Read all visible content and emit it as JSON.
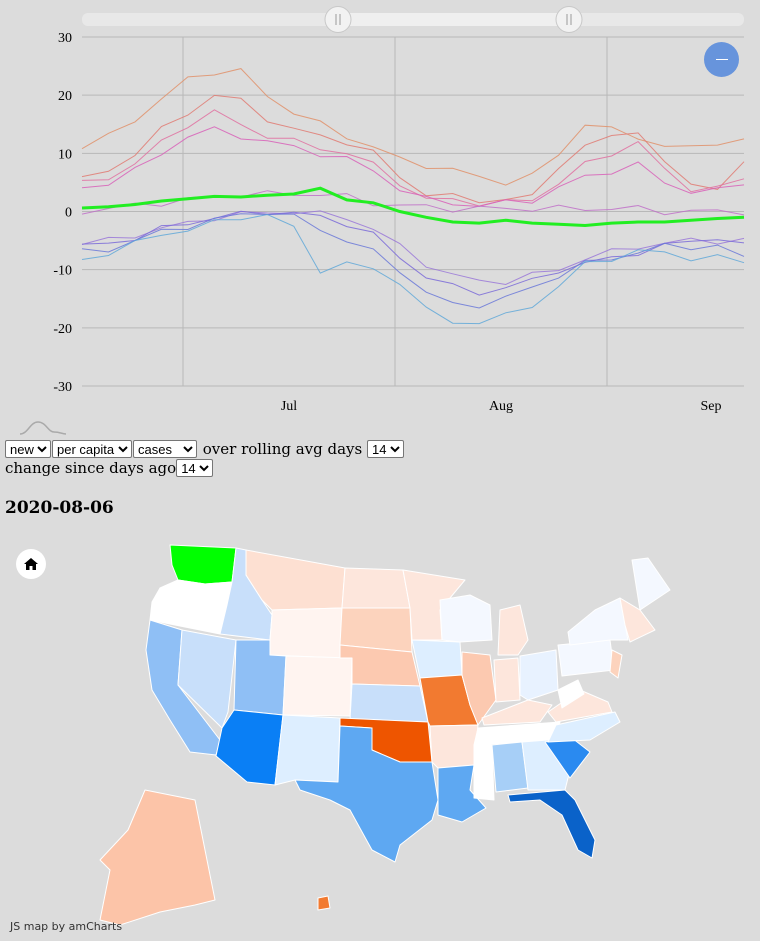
{
  "chart_data": {
    "type": "line",
    "x_tick_labels": [
      "Jul",
      "Aug",
      "Sep"
    ],
    "y_ticks": [
      30,
      20,
      10,
      0,
      -10,
      -20,
      -30
    ],
    "ylim": [
      -30,
      30
    ],
    "grid": true,
    "series": [
      {
        "values": [
          10.8,
          13,
          16,
          19,
          23,
          24,
          24,
          20,
          17,
          15,
          13,
          11,
          9,
          8,
          7,
          6,
          5,
          6,
          10,
          15,
          14,
          13,
          11,
          11,
          12,
          12
        ]
      },
      {
        "values": [
          5.5,
          7,
          10,
          14,
          17,
          20,
          19,
          16,
          14,
          13,
          12,
          10,
          6,
          3,
          2.5,
          2,
          2,
          2.5,
          8,
          11,
          13,
          14,
          8,
          5,
          4,
          8
        ]
      },
      {
        "values": [
          4.8,
          6,
          8,
          12,
          15,
          17,
          15,
          13,
          12,
          11,
          10,
          8,
          5,
          2,
          2,
          1.5,
          1.5,
          2,
          5,
          8,
          10,
          12,
          7,
          4,
          4,
          5.5
        ]
      },
      {
        "values": [
          4,
          5,
          7,
          10,
          13,
          14,
          13,
          12,
          11,
          10,
          9,
          7,
          4,
          2,
          1.5,
          1,
          1.5,
          2,
          4,
          6,
          7,
          8,
          5,
          3.5,
          3.5,
          5
        ]
      },
      {
        "values": [
          0,
          0.5,
          1,
          1.5,
          2,
          2.5,
          3,
          3,
          3,
          3,
          2.5,
          1.5,
          1,
          0.8,
          0.5,
          0.5,
          0.5,
          0.5,
          0.5,
          0.5,
          0.5,
          0.5,
          0,
          0,
          0,
          0
        ]
      },
      {
        "values": [
          0.6,
          0.8,
          1.2,
          1.8,
          2.2,
          2.6,
          2.5,
          2.8,
          3,
          4,
          2,
          1.5,
          0,
          -1,
          -1.8,
          -2,
          -1.5,
          -2,
          -2.2,
          -2.4,
          -2,
          -1.8,
          -1.8,
          -1.5,
          -1.2,
          -1
        ]
      },
      {
        "values": [
          -5.5,
          -5,
          -4,
          -3,
          -2,
          -1,
          -0.5,
          -0.2,
          0,
          -0.5,
          -1,
          -3,
          -6,
          -9,
          -11,
          -12,
          -12,
          -11,
          -10,
          -8,
          -7,
          -6,
          -5.5,
          -5,
          -5,
          -5
        ]
      },
      {
        "values": [
          -6,
          -5.5,
          -4.5,
          -3,
          -2,
          -1,
          -0.5,
          0,
          -0.3,
          -1,
          -2,
          -4,
          -8,
          -11,
          -13,
          -14,
          -13,
          -12,
          -10,
          -9,
          -8,
          -7,
          -6,
          -5,
          -4.5,
          -6
        ]
      },
      {
        "values": [
          -7,
          -6.5,
          -5,
          -3.5,
          -2.5,
          -1.5,
          -0.5,
          0,
          -1,
          -3,
          -5,
          -7,
          -10,
          -14,
          -16,
          -16,
          -15,
          -13,
          -11,
          -9,
          -8,
          -7,
          -6,
          -6,
          -6,
          -8
        ]
      },
      {
        "values": [
          -8.5,
          -7,
          -5.5,
          -4,
          -3,
          -2,
          -1,
          -0.5,
          -3,
          -10,
          -9,
          -10,
          -12,
          -17,
          -19,
          -19,
          -18,
          -16,
          -13,
          -9,
          -8,
          -7,
          -7,
          -8,
          -8,
          -8.5
        ]
      }
    ],
    "highlight_series_index": 5,
    "colors": [
      "#e0906a",
      "#e07a72",
      "#e070a0",
      "#d860b8",
      "#c070c8",
      "#22ee22",
      "#9a78d8",
      "#7a6ad8",
      "#6a78d8",
      "#60a8d8"
    ]
  },
  "zoom_out_icon": "minus-icon",
  "controls": {
    "metric_select": {
      "selected": "new"
    },
    "normalization_select": {
      "selected": "per capita"
    },
    "measure_select": {
      "selected": "cases"
    },
    "rolling_label": "over rolling avg days",
    "rolling_select": {
      "selected": "14"
    },
    "change_label": "change since days ago",
    "change_select": {
      "selected": "14"
    }
  },
  "date_title": "2020-08-06",
  "home_icon": "home-icon",
  "map_credit": "JS map by amCharts"
}
